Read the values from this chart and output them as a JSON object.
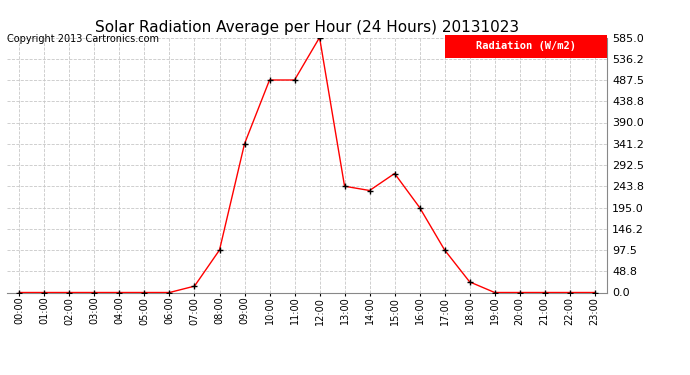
{
  "title": "Solar Radiation Average per Hour (24 Hours) 20131023",
  "copyright_text": "Copyright 2013 Cartronics.com",
  "legend_label": "Radiation (W/m2)",
  "hours": [
    "00:00",
    "01:00",
    "02:00",
    "03:00",
    "04:00",
    "05:00",
    "06:00",
    "07:00",
    "08:00",
    "09:00",
    "10:00",
    "11:00",
    "12:00",
    "13:00",
    "14:00",
    "15:00",
    "16:00",
    "17:00",
    "18:00",
    "19:00",
    "20:00",
    "21:00",
    "22:00",
    "23:00"
  ],
  "values": [
    0.0,
    0.0,
    0.0,
    0.0,
    0.0,
    0.0,
    0.0,
    14.6,
    97.5,
    341.2,
    487.5,
    487.5,
    585.0,
    243.8,
    234.0,
    273.0,
    195.0,
    97.5,
    24.4,
    0.0,
    0.0,
    0.0,
    0.0,
    0.0
  ],
  "line_color": "#ff0000",
  "marker_color": "#000000",
  "bg_color": "#ffffff",
  "grid_color": "#c8c8c8",
  "yticks": [
    0.0,
    48.8,
    97.5,
    146.2,
    195.0,
    243.8,
    292.5,
    341.2,
    390.0,
    438.8,
    487.5,
    536.2,
    585.0
  ],
  "ylim": [
    0.0,
    585.0
  ],
  "legend_bg": "#ff0000",
  "legend_text_color": "#ffffff",
  "title_color": "#000000",
  "copyright_color": "#000000",
  "title_fontsize": 11,
  "copyright_fontsize": 7,
  "ytick_fontsize": 8,
  "xtick_fontsize": 7
}
